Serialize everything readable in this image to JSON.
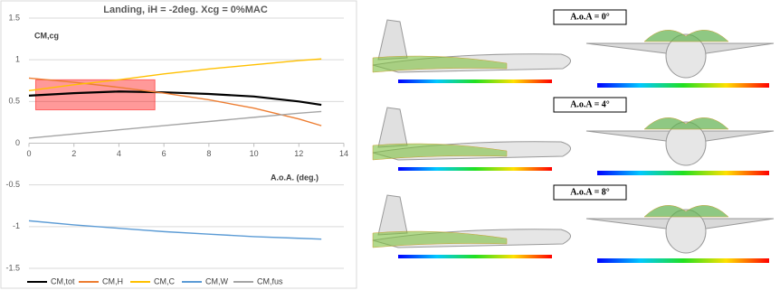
{
  "chart_data": {
    "type": "line",
    "title": "Landing, iH = -2deg. Xcg = 0%MAC",
    "y_label": "CM,cg",
    "x_label": "A.o.A. (deg.)",
    "x": [
      0,
      2,
      4,
      6,
      8,
      10,
      12,
      13
    ],
    "series": [
      {
        "name": "CM,tot",
        "color": "#000000",
        "values": [
          0.57,
          0.6,
          0.62,
          0.61,
          0.59,
          0.56,
          0.5,
          0.46
        ]
      },
      {
        "name": "CM,H",
        "color": "#ed7d31",
        "values": [
          0.78,
          0.73,
          0.67,
          0.6,
          0.52,
          0.42,
          0.29,
          0.21
        ]
      },
      {
        "name": "CM,C",
        "color": "#ffc000",
        "values": [
          0.63,
          0.7,
          0.76,
          0.83,
          0.89,
          0.94,
          0.99,
          1.01
        ]
      },
      {
        "name": "CM,W",
        "color": "#5b9bd5",
        "values": [
          -0.93,
          -0.98,
          -1.02,
          -1.06,
          -1.09,
          -1.12,
          -1.14,
          -1.15
        ]
      },
      {
        "name": "CM,fus",
        "color": "#a5a5a5",
        "values": [
          0.06,
          0.11,
          0.16,
          0.21,
          0.26,
          0.31,
          0.36,
          0.38
        ]
      }
    ],
    "highlight": {
      "xlim": [
        0.3,
        5.6
      ],
      "ylim": [
        0.4,
        0.76
      ],
      "color": "#ff0000"
    },
    "xlim": [
      0,
      14
    ],
    "xticks": [
      0,
      2,
      4,
      6,
      8,
      10,
      12,
      14
    ],
    "ylim": [
      -1.5,
      1.5
    ],
    "yticks": [
      -1.5,
      -1,
      -0.5,
      0,
      0.5,
      1,
      1.5
    ],
    "grid": true,
    "legend": "bottom"
  },
  "panels": [
    {
      "label": "A.o.A = 0°"
    },
    {
      "label": "A.o.A = 4°"
    },
    {
      "label": "A.o.A = 8°"
    }
  ]
}
